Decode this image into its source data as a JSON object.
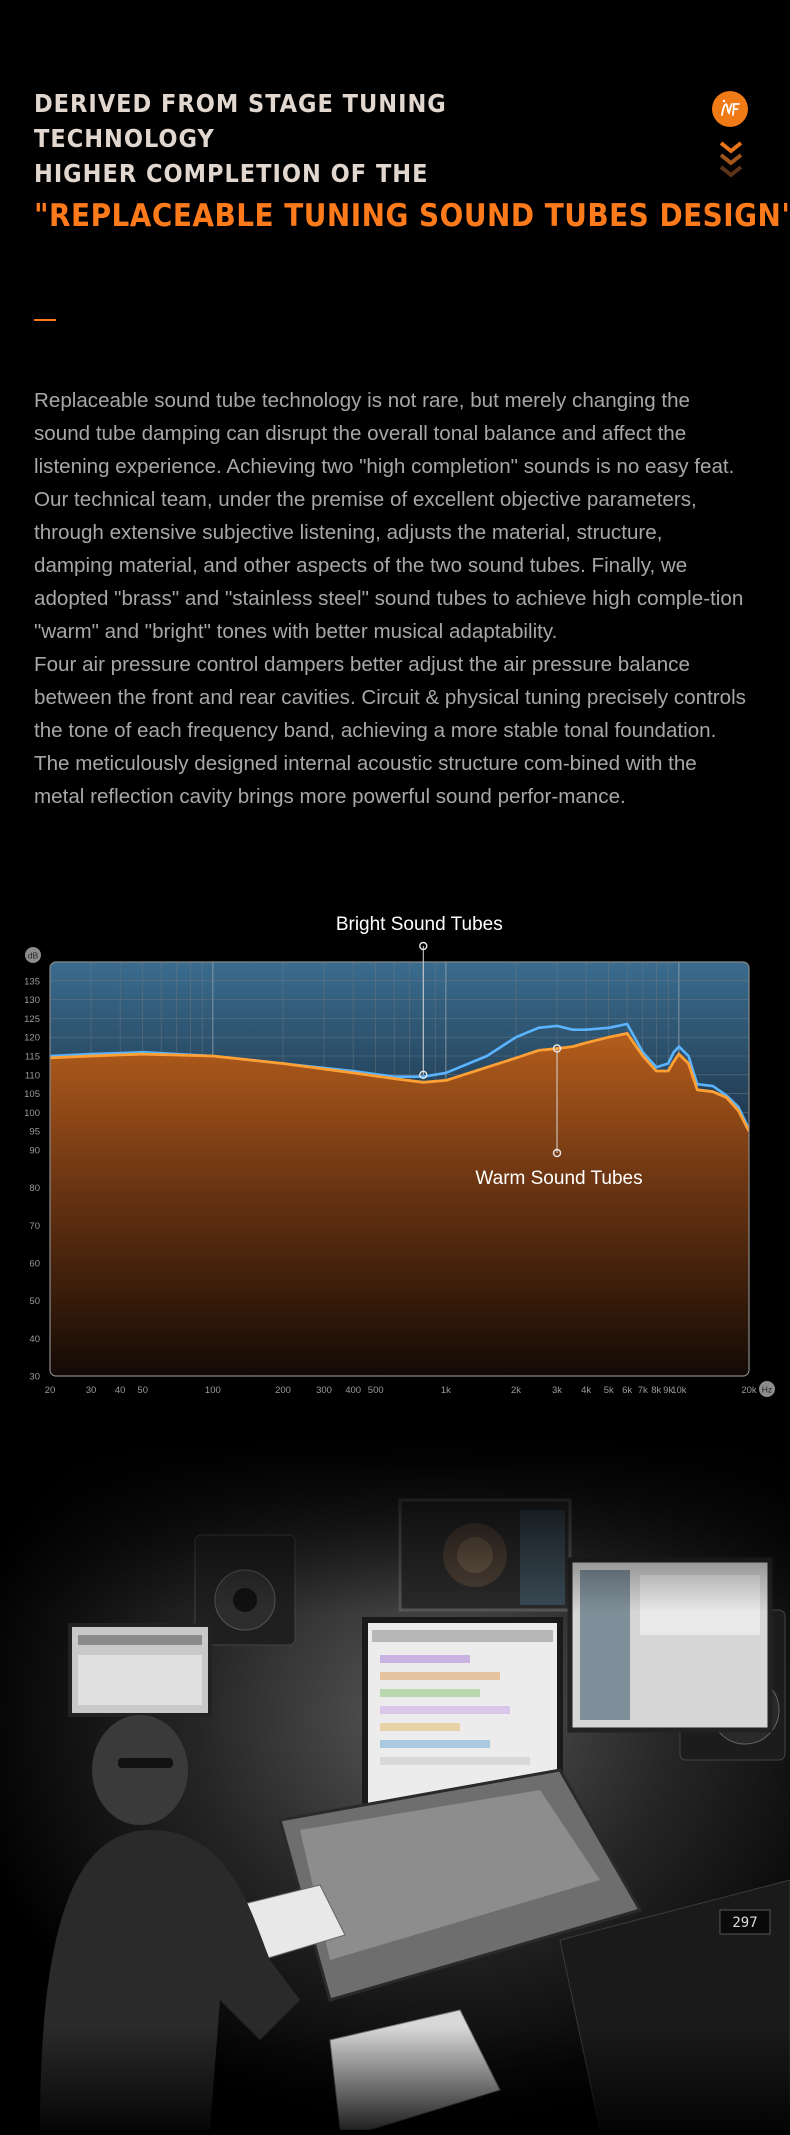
{
  "header": {
    "line1": "DERIVED FROM STAGE TUNING",
    "line2": "TECHNOLOGY",
    "line3": "HIGHER COMPLETION OF THE",
    "accent": "\"REPLACEABLE TUNING SOUND TUBES DESIGN\"",
    "logo_icon": "nf-logo-icon",
    "scroll_icon": "triple-chevron-down-icon"
  },
  "body": {
    "p1": "Replaceable sound tube technology is not rare, but merely changing the sound tube damping can disrupt the overall tonal balance and affect the listening experience. Achieving two \"high completion\" sounds is no easy feat.",
    "p2": "Our technical team, under the premise of excellent objective parameters, through extensive subjective listening, adjusts the material, structure, damping material, and other aspects of the two sound tubes. Finally, we adopted \"brass\" and \"stainless steel\" sound tubes to achieve high comple-tion \"warm\" and \"bright\" tones with better musical adaptability.",
    "p3": "Four air pressure control dampers better adjust the air pressure balance between the front and rear cavities. Circuit & physical tuning precisely controls the tone of each frequency band, achieving a more stable tonal foundation. The meticulously designed internal acoustic structure com-bined with the metal reflection cavity brings more powerful sound perfor-mance."
  },
  "colors": {
    "accent": "#ff7a1a",
    "heading": "#e2d7cf",
    "text": "#a7a7a7",
    "bright_line": "#5ab4ff",
    "warm_line": "#ffa035"
  },
  "chart_data": {
    "type": "area",
    "title": "",
    "xlabel": "Hz",
    "ylabel": "dB",
    "x_scale": "log",
    "xlim": [
      20,
      20000
    ],
    "ylim": [
      30,
      140
    ],
    "x_ticks": [
      20,
      30,
      40,
      50,
      100,
      200,
      300,
      400,
      500,
      1000,
      2000,
      3000,
      4000,
      5000,
      6000,
      7000,
      8000,
      9000,
      10000,
      20000
    ],
    "x_tick_labels": [
      "20",
      "30",
      "40",
      "50",
      "100",
      "200",
      "300",
      "400",
      "500",
      "1k",
      "2k",
      "3k",
      "4k",
      "5k",
      "6k",
      "7k",
      "8k",
      "9k",
      "10k",
      "20k"
    ],
    "y_ticks": [
      30,
      40,
      50,
      60,
      70,
      80,
      90,
      95,
      100,
      105,
      110,
      115,
      120,
      125,
      130,
      135
    ],
    "grid": true,
    "annotations": [
      {
        "text": "Bright Sound Tubes",
        "series": "Bright Sound Tubes",
        "x": 800,
        "y": 110
      },
      {
        "text": "Warm Sound Tubes",
        "series": "Warm Sound Tubes",
        "x": 3000,
        "y": 117
      }
    ],
    "series": [
      {
        "name": "Bright Sound Tubes",
        "x": [
          20,
          30,
          50,
          100,
          200,
          400,
          600,
          800,
          1000,
          1500,
          2000,
          2500,
          3000,
          3500,
          4000,
          5000,
          6000,
          7000,
          8000,
          9000,
          9500,
          10000,
          11000,
          12000,
          14000,
          16000,
          18000,
          20000
        ],
        "y": [
          115,
          115.5,
          116,
          115,
          113,
          111,
          109.5,
          109.5,
          110.5,
          115,
          120,
          122.5,
          123,
          122,
          122,
          122.5,
          123.5,
          116,
          112,
          113,
          116,
          117.5,
          115,
          107.5,
          107,
          104.5,
          101.5,
          95.5
        ]
      },
      {
        "name": "Warm Sound Tubes",
        "x": [
          20,
          30,
          50,
          100,
          200,
          400,
          600,
          800,
          1000,
          1500,
          2000,
          2500,
          3000,
          3500,
          4000,
          5000,
          6000,
          7000,
          8000,
          9000,
          9500,
          10000,
          11000,
          12000,
          14000,
          16000,
          18000,
          20000
        ],
        "y": [
          114.5,
          115,
          115.5,
          115,
          113,
          110.5,
          109,
          108,
          108.5,
          112,
          114.5,
          116.5,
          117,
          117.5,
          118.5,
          120,
          121,
          115,
          111,
          111,
          113.5,
          115.5,
          113,
          106,
          105.5,
          104,
          100.5,
          95
        ]
      }
    ]
  },
  "photo": {
    "icon": "studio-engineer-photo",
    "screen_readout": "297"
  }
}
